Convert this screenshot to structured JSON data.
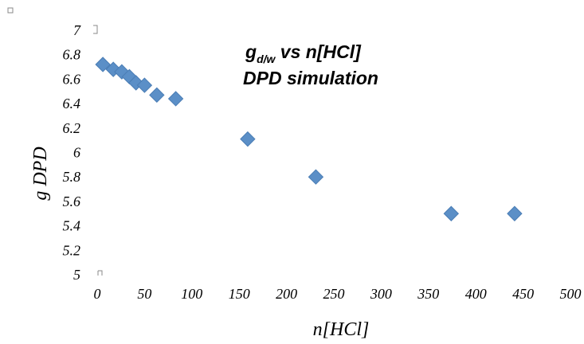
{
  "chart_data": {
    "type": "scatter",
    "title_parts": {
      "main": "g",
      "sub": "d/w",
      "rest": " vs n[HCl]"
    },
    "subtitle": "DPD simulation",
    "xlabel": "n[HCl]",
    "ylabel": "g DPD",
    "xlim": [
      0,
      500
    ],
    "ylim": [
      5,
      7
    ],
    "x_ticks": [
      "0",
      "50",
      "100",
      "150",
      "200",
      "250",
      "300",
      "350",
      "400",
      "450",
      "500"
    ],
    "y_ticks": [
      "5",
      "5.2",
      "5.4",
      "5.6",
      "5.8",
      "6",
      "6.2",
      "6.4",
      "6.6",
      "6.8",
      "7"
    ],
    "grid": false,
    "legend": "none",
    "marker": "diamond",
    "color": "#5b8fc7",
    "series": [
      {
        "points": [
          {
            "x": 6,
            "y": 6.72
          },
          {
            "x": 17,
            "y": 6.68
          },
          {
            "x": 26,
            "y": 6.66
          },
          {
            "x": 34,
            "y": 6.62
          },
          {
            "x": 41,
            "y": 6.57
          },
          {
            "x": 50,
            "y": 6.55
          },
          {
            "x": 63,
            "y": 6.47
          },
          {
            "x": 83,
            "y": 6.44
          },
          {
            "x": 159,
            "y": 6.11
          },
          {
            "x": 231,
            "y": 5.8
          },
          {
            "x": 374,
            "y": 5.5
          },
          {
            "x": 441,
            "y": 5.5
          }
        ]
      }
    ]
  }
}
